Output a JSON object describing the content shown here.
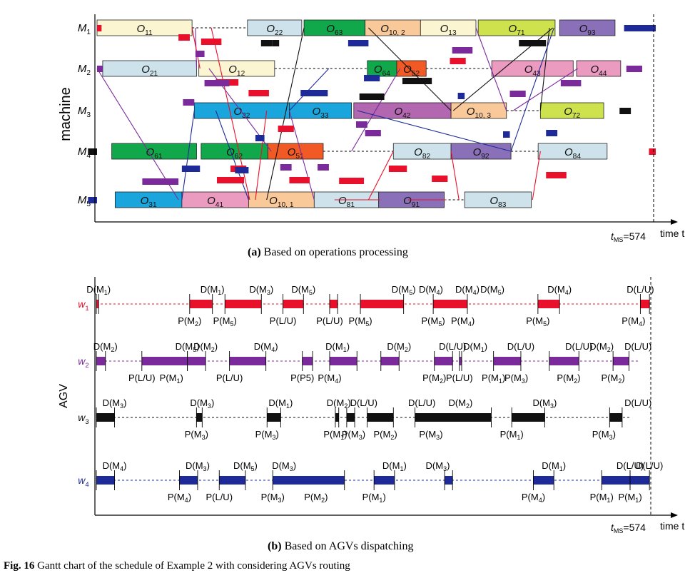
{
  "chart_data": [
    {
      "type": "gantt",
      "panel": "(a)",
      "caption": "Based on operations processing",
      "xlabel": "time t",
      "ylabel": "machine",
      "end_marker": "t_MS=574",
      "rows": [
        "M1",
        "M2",
        "M3",
        "M4",
        "M5"
      ],
      "operations": [
        {
          "machine": "M1",
          "op": "O_11",
          "start": 0,
          "end": 84,
          "color": "#fbf5d2"
        },
        {
          "machine": "M1",
          "op": "O_22",
          "start": 133,
          "end": 181,
          "color": "#cde2ea"
        },
        {
          "machine": "M1",
          "op": "O_63",
          "start": 183,
          "end": 237,
          "color": "#11a84c"
        },
        {
          "machine": "M1",
          "op": "O_10,2",
          "start": 237,
          "end": 286,
          "color": "#fac99a"
        },
        {
          "machine": "M1",
          "op": "O_13",
          "start": 286,
          "end": 335,
          "color": "#fbf5d2"
        },
        {
          "machine": "M1",
          "op": "O_71",
          "start": 337,
          "end": 405,
          "color": "#cde24d"
        },
        {
          "machine": "M1",
          "op": "O_93",
          "start": 409,
          "end": 458,
          "color": "#8a70b8"
        },
        {
          "machine": "M2",
          "op": "O_21",
          "start": 5,
          "end": 88,
          "color": "#cde2ea"
        },
        {
          "machine": "M2",
          "op": "O_12",
          "start": 90,
          "end": 157,
          "color": "#fbf5d2"
        },
        {
          "machine": "M2",
          "op": "O_64",
          "start": 239,
          "end": 265,
          "color": "#11a84c"
        },
        {
          "machine": "M2",
          "op": "O_52",
          "start": 265,
          "end": 291,
          "color": "#f15a24"
        },
        {
          "machine": "M2",
          "op": "O_43",
          "start": 349,
          "end": 421,
          "color": "#eb9ac0"
        },
        {
          "machine": "M2",
          "op": "O_44",
          "start": 424,
          "end": 463,
          "color": "#eb9ac0"
        },
        {
          "machine": "M3",
          "op": "O_32",
          "start": 86,
          "end": 170,
          "color": "#1aa5dc"
        },
        {
          "machine": "M3",
          "op": "O_33",
          "start": 170,
          "end": 225,
          "color": "#1aa5dc"
        },
        {
          "machine": "M3",
          "op": "O_42",
          "start": 227,
          "end": 313,
          "color": "#b267b0"
        },
        {
          "machine": "M3",
          "op": "O_10,3",
          "start": 313,
          "end": 362,
          "color": "#fac99a"
        },
        {
          "machine": "M3",
          "op": "O_72",
          "start": 392,
          "end": 448,
          "color": "#cde24d"
        },
        {
          "machine": "M4",
          "op": "O_61",
          "start": 13,
          "end": 88,
          "color": "#11a84c"
        },
        {
          "machine": "M4",
          "op": "O_62",
          "start": 92,
          "end": 151,
          "color": "#11a84c"
        },
        {
          "machine": "M4",
          "op": "O_51",
          "start": 151,
          "end": 200,
          "color": "#f15a24"
        },
        {
          "machine": "M4",
          "op": "O_82",
          "start": 262,
          "end": 313,
          "color": "#cde2ea"
        },
        {
          "machine": "M4",
          "op": "O_92",
          "start": 313,
          "end": 366,
          "color": "#8a70b8"
        },
        {
          "machine": "M4",
          "op": "O_84",
          "start": 390,
          "end": 451,
          "color": "#cde2ea"
        },
        {
          "machine": "M5",
          "op": "O_31",
          "start": 16,
          "end": 75,
          "color": "#1aa5dc"
        },
        {
          "machine": "M5",
          "op": "O_41",
          "start": 75,
          "end": 134,
          "color": "#eb9ac0"
        },
        {
          "machine": "M5",
          "op": "O_10,1",
          "start": 134,
          "end": 192,
          "color": "#fac99a"
        },
        {
          "machine": "M5",
          "op": "O_81",
          "start": 192,
          "end": 249,
          "color": "#cde2ea"
        },
        {
          "machine": "M5",
          "op": "O_91",
          "start": 249,
          "end": 307,
          "color": "#8a70b8"
        },
        {
          "machine": "M5",
          "op": "O_83",
          "start": 325,
          "end": 384,
          "color": "#cde2ea"
        }
      ]
    },
    {
      "type": "gantt",
      "panel": "(b)",
      "caption": "Based on AGVs dispatching",
      "xlabel": "time t",
      "ylabel": "AGV",
      "end_marker": "t_MS=574",
      "rows": [
        "w1",
        "w2",
        "w3",
        "w4"
      ],
      "row_colors": {
        "w1": "#e8102a",
        "w2": "#7b2a9c",
        "w3": "#111111",
        "w4": "#1f2a99"
      },
      "tasks": {
        "w1": [
          [
            0,
            2
          ],
          [
            82,
            102
          ],
          [
            113,
            145
          ],
          [
            164,
            182
          ],
          [
            205,
            212
          ],
          [
            232,
            270
          ],
          [
            296,
            326
          ],
          [
            388,
            407
          ],
          [
            478,
            486
          ]
        ],
        "w2": [
          [
            0,
            8
          ],
          [
            40,
            80
          ],
          [
            80,
            96
          ],
          [
            117,
            149
          ],
          [
            181,
            190
          ],
          [
            205,
            229
          ],
          [
            250,
            266
          ],
          [
            297,
            313
          ],
          [
            319,
            321
          ],
          [
            349,
            373
          ],
          [
            398,
            424
          ],
          [
            454,
            468
          ]
        ],
        "w3": [
          [
            0,
            16
          ],
          [
            88,
            93
          ],
          [
            150,
            162
          ],
          [
            210,
            213
          ],
          [
            220,
            227
          ],
          [
            238,
            261
          ],
          [
            280,
            347
          ],
          [
            365,
            394
          ],
          [
            451,
            462
          ]
        ],
        "w4": [
          [
            0,
            16
          ],
          [
            73,
            89
          ],
          [
            108,
            131
          ],
          [
            155,
            218
          ],
          [
            244,
            262
          ],
          [
            306,
            313
          ],
          [
            384,
            402
          ],
          [
            444,
            469
          ],
          [
            469,
            486
          ]
        ]
      },
      "labels": {
        "w1": {
          "top": [
            [
              2,
              "D(M1)"
            ],
            [
              102,
              "D(M1)"
            ],
            [
              145,
              "D(M3)"
            ],
            [
              182,
              "D(M5)"
            ],
            [
              270,
              "D(M5)"
            ],
            [
              294,
              "D(M4)"
            ],
            [
              326,
              "D(M4)"
            ],
            [
              348,
              "D(M5)"
            ],
            [
              407,
              "D(M4)"
            ],
            [
              478,
              "D(L/U)"
            ]
          ],
          "bottom": [
            [
              82,
              "P(M2)"
            ],
            [
              113,
              "P(M5)"
            ],
            [
              164,
              "P(L/U)"
            ],
            [
              205,
              "P(L/U)"
            ],
            [
              232,
              "P(M5)"
            ],
            [
              296,
              "P(M5)"
            ],
            [
              322,
              "P(M4)"
            ],
            [
              388,
              "P(M5)"
            ],
            [
              472,
              "P(M4)"
            ]
          ]
        },
        "w2": {
          "top": [
            [
              8,
              "D(M2)"
            ],
            [
              80,
              "D(M5)"
            ],
            [
              96,
              "D(M2)"
            ],
            [
              149,
              "D(M4)"
            ],
            [
              212,
              "D(M1)"
            ],
            [
              266,
              "D(M2)"
            ],
            [
              313,
              "D(L/U)"
            ],
            [
              333,
              "D(M1)"
            ],
            [
              373,
              "D(L/U)"
            ],
            [
              424,
              "D(L/U)"
            ],
            [
              444,
              "D(M2)"
            ],
            [
              476,
              "D(L/U)"
            ]
          ],
          "bottom": [
            [
              40,
              "P(L/U)"
            ],
            [
              66,
              "P(M1)"
            ],
            [
              117,
              "P(L/U)"
            ],
            [
              181,
              "P(P5)"
            ],
            [
              205,
              "P(M4)"
            ],
            [
              297,
              "P(M2)"
            ],
            [
              319,
              "P(L/U)"
            ],
            [
              349,
              "P(M1)"
            ],
            [
              369,
              "P(M3)"
            ],
            [
              415,
              "P(M2)"
            ],
            [
              454,
              "P(M2)"
            ]
          ]
        },
        "w3": {
          "top": [
            [
              16,
              "D(M3)"
            ],
            [
              93,
              "D(M3)"
            ],
            [
              162,
              "D(M1)"
            ],
            [
              213,
              "D(M2)"
            ],
            [
              235,
              "D(L/U)"
            ],
            [
              286,
              "D(L/U)"
            ],
            [
              320,
              "D(M2)"
            ],
            [
              394,
              "D(M3)"
            ],
            [
              476,
              "D(L/U)"
            ]
          ],
          "bottom": [
            [
              88,
              "P(M3)"
            ],
            [
              150,
              "P(M3)"
            ],
            [
              210,
              "P(M1)"
            ],
            [
              226,
              "P(M3)"
            ],
            [
              254,
              "P(M2)"
            ],
            [
              294,
              "P(M3)"
            ],
            [
              365,
              "P(M1)"
            ],
            [
              446,
              "P(M3)"
            ]
          ]
        },
        "w4": {
          "top": [
            [
              16,
              "D(M4)"
            ],
            [
              89,
              "D(M3)"
            ],
            [
              131,
              "D(M5)"
            ],
            [
              165,
              "D(M3)"
            ],
            [
              262,
              "D(M1)"
            ],
            [
              300,
              "D(M3)"
            ],
            [
              402,
              "D(M1)"
            ],
            [
              469,
              "D(L/U)"
            ],
            [
              486,
              "D(L/U)"
            ]
          ],
          "bottom": [
            [
              73,
              "P(M4)"
            ],
            [
              108,
              "P(L/U)"
            ],
            [
              155,
              "P(M3)"
            ],
            [
              193,
              "P(M2)"
            ],
            [
              244,
              "P(M1)"
            ],
            [
              384,
              "P(M4)"
            ],
            [
              444,
              "P(M1)"
            ],
            [
              469,
              "P(M1)"
            ]
          ]
        }
      }
    }
  ],
  "labels": {
    "panel_a": "(a)",
    "caption_a": "Based on operations processing",
    "panel_b": "(b)",
    "caption_b": "Based on AGVs dispatching",
    "fig_no": "Fig. 16",
    "fig_caption": "Gantt chart of the schedule of Example 2 with considering AGVs routing",
    "t_ms": "=574",
    "time_axis": "time t"
  }
}
